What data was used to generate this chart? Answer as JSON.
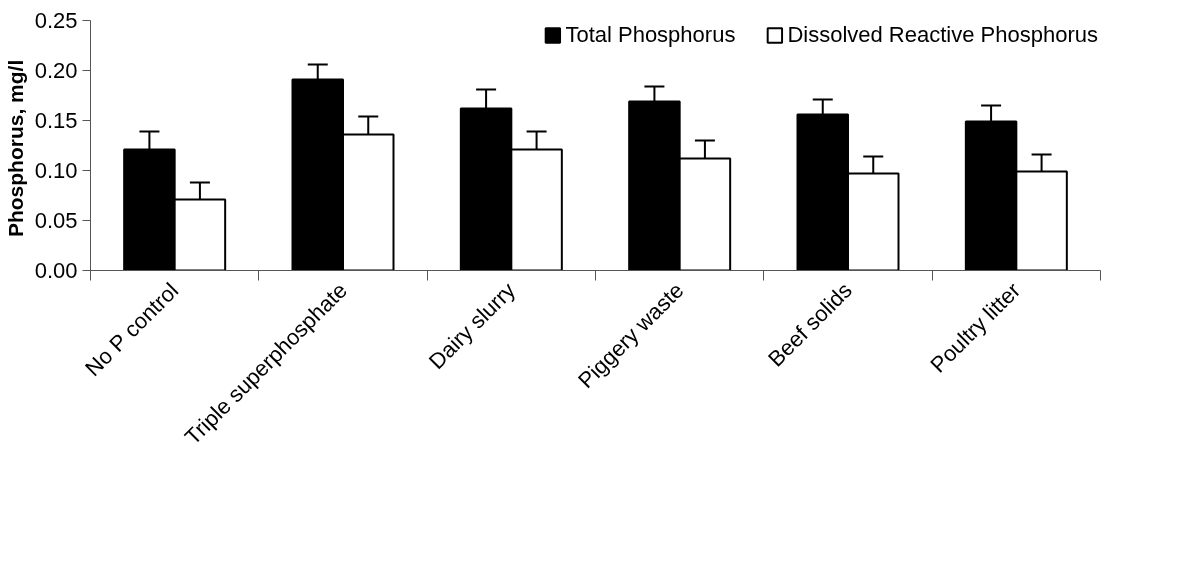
{
  "chart_data": {
    "type": "bar",
    "ylabel": "Phosphorus,  mg/l",
    "categories": [
      "No P control",
      "Triple superphosphate",
      "Dairy slurry",
      "Piggery waste",
      "Beef solids",
      "Poultry litter"
    ],
    "series": [
      {
        "name": "Total Phosphorus",
        "color": "#000000",
        "values": [
          0.121,
          0.191,
          0.162,
          0.169,
          0.156,
          0.149
        ],
        "errors": [
          [
            0.121,
            0.139
          ],
          [
            0.191,
            0.206
          ],
          [
            0.162,
            0.181
          ],
          [
            0.169,
            0.184
          ],
          [
            0.156,
            0.171
          ],
          [
            0.149,
            0.165
          ]
        ]
      },
      {
        "name": "Dissolved Reactive Phosphorus",
        "color": "#ffffff",
        "values": [
          0.071,
          0.136,
          0.121,
          0.112,
          0.097,
          0.099
        ],
        "errors": [
          [
            0.071,
            0.088
          ],
          [
            0.136,
            0.154
          ],
          [
            0.121,
            0.139
          ],
          [
            0.112,
            0.13
          ],
          [
            0.097,
            0.114
          ],
          [
            0.099,
            0.116
          ]
        ]
      }
    ],
    "ylim": [
      0,
      0.25
    ],
    "yticks": [
      {
        "value": 0,
        "label": "0.00"
      },
      {
        "value": 0.05,
        "label": "0.05"
      },
      {
        "value": 0.1,
        "label": "0.10"
      },
      {
        "value": 0.15,
        "label": "0.15"
      },
      {
        "value": 0.2,
        "label": "0.20"
      },
      {
        "value": 0.25,
        "label": "0.25"
      }
    ],
    "grid": false,
    "legend": "top right"
  }
}
